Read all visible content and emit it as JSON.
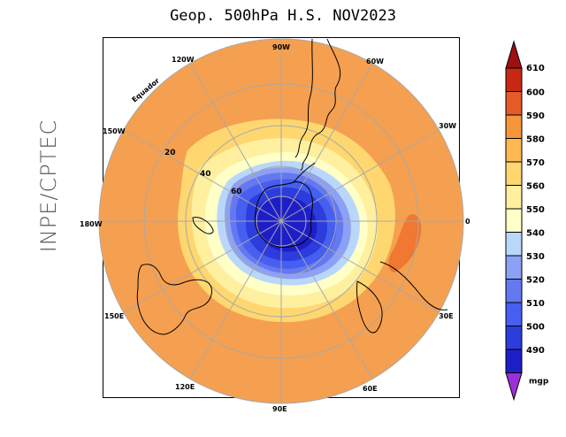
{
  "title": "Geop. 500hPa H.S. NOV2023",
  "side_label": "INPE/CPTEC",
  "map": {
    "projection": "polar stereographic, south pole",
    "longitude_labels": [
      "90W",
      "60W",
      "30W",
      "0",
      "30E",
      "60E",
      "90E",
      "120E",
      "150E",
      "180W",
      "150W",
      "120W"
    ],
    "latitude_labels": [
      "20",
      "40",
      "60"
    ],
    "equator_label": "Equador",
    "anomaly_note": "local maximum 590-600 mgp east of South Atlantic"
  },
  "legend": {
    "unit": "mgp",
    "levels": [
      "490",
      "500",
      "510",
      "520",
      "530",
      "540",
      "550",
      "560",
      "570",
      "580",
      "590",
      "600",
      "610"
    ],
    "colors": [
      "#1e1ec8",
      "#2d3cdc",
      "#465ff0",
      "#6478f0",
      "#8ca0f5",
      "#b9d7fa",
      "#ffffc8",
      "#fff0a0",
      "#ffd770",
      "#ffb950",
      "#f5963c",
      "#e65a28",
      "#c82814"
    ],
    "below_color": "#9b30d8",
    "above_color": "#a01010"
  },
  "colors": {
    "field_outer": "#f5a050",
    "field_high": "#f07830"
  }
}
